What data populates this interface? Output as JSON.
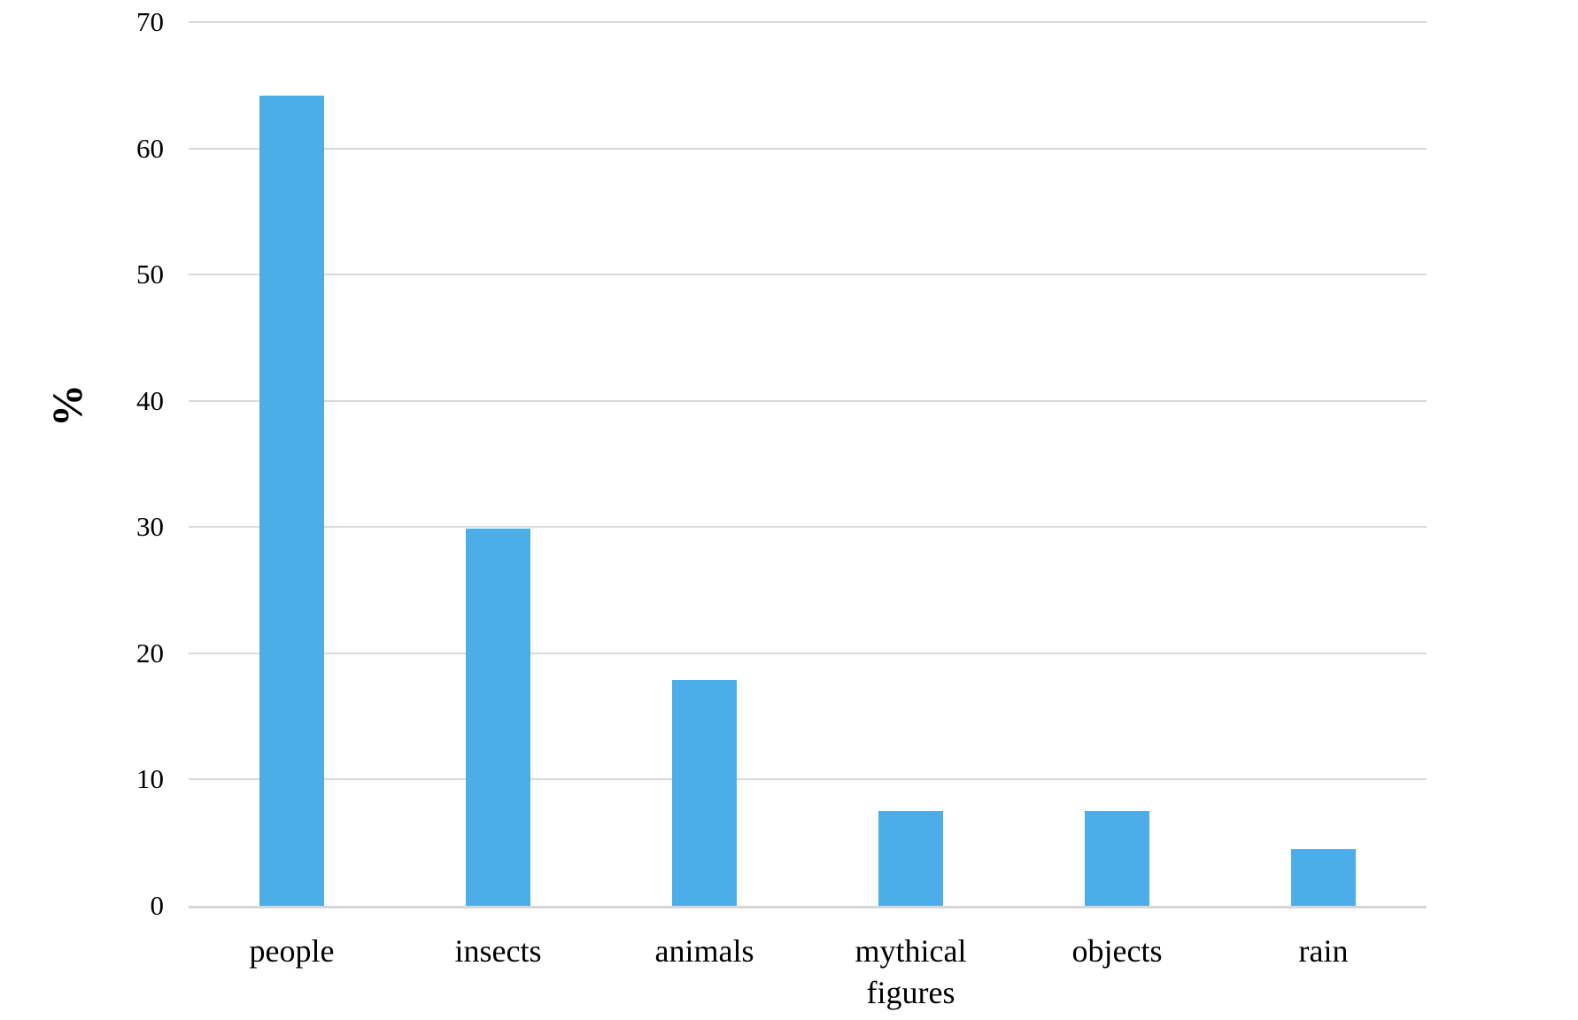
{
  "chart_data": {
    "type": "bar",
    "title": "",
    "categories": [
      "people",
      "insects",
      "animals",
      "mythical figures",
      "objects",
      "rain"
    ],
    "values": [
      64.2,
      29.9,
      17.9,
      7.5,
      7.5,
      4.5
    ],
    "xlabel": "",
    "ylabel": "%",
    "ylim": [
      0,
      70
    ],
    "yticks": [
      0,
      10,
      20,
      30,
      40,
      50,
      60,
      70
    ],
    "legend_position": "none",
    "grid": "horizontal",
    "bar_color": "#4dade9",
    "gridline_color": "#d9d9d9",
    "baseline_color": "#d6d6d6",
    "background_color": "#ffffff"
  }
}
